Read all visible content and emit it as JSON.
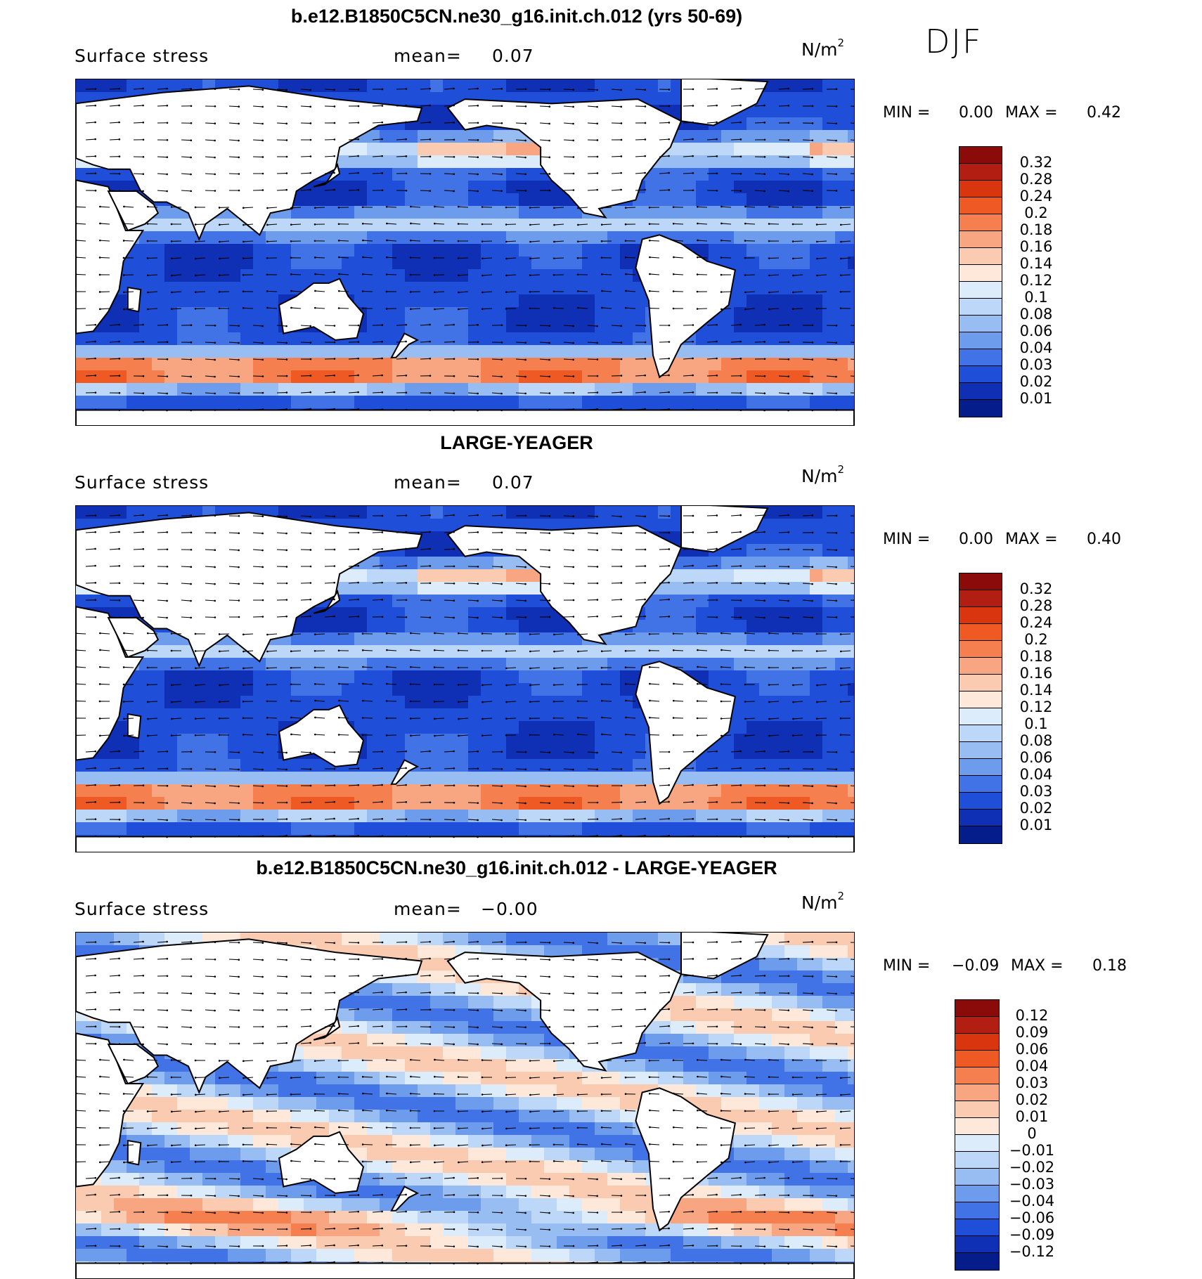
{
  "season": "DJF",
  "panels": [
    {
      "title": "b.e12.B1850C5CN.ne30_g16.init.ch.012 (yrs 50-69)",
      "variable": "Surface stress",
      "mean_label": "mean=",
      "mean_value": "0.07",
      "units": "N/m",
      "units_exp": "2",
      "min_label": "MIN =",
      "min_value": "0.00",
      "max_label": "MAX =",
      "max_value": "0.42",
      "colorbar_ticks": [
        "0.32",
        "0.28",
        "0.24",
        "0.2",
        "0.18",
        "0.16",
        "0.14",
        "0.12",
        "0.1",
        "0.08",
        "0.06",
        "0.04",
        "0.03",
        "0.02",
        "0.01"
      ],
      "colors": [
        "#8b0a0a",
        "#b21e12",
        "#d9350f",
        "#ef5a24",
        "#f57f4f",
        "#f8a581",
        "#fbcbb1",
        "#fde8da",
        "#dcecfa",
        "#bcd7f7",
        "#98bdf2",
        "#6d9cec",
        "#4173e6",
        "#1f4ed9",
        "#0f2fb5",
        "#041d8a"
      ]
    },
    {
      "title": "LARGE-YEAGER",
      "variable": "Surface stress",
      "mean_label": "mean=",
      "mean_value": "0.07",
      "units": "N/m",
      "units_exp": "2",
      "min_label": "MIN =",
      "min_value": "0.00",
      "max_label": "MAX =",
      "max_value": "0.40",
      "colorbar_ticks": [
        "0.32",
        "0.28",
        "0.24",
        "0.2",
        "0.18",
        "0.16",
        "0.14",
        "0.12",
        "0.1",
        "0.08",
        "0.06",
        "0.04",
        "0.03",
        "0.02",
        "0.01"
      ],
      "colors": [
        "#8b0a0a",
        "#b21e12",
        "#d9350f",
        "#ef5a24",
        "#f57f4f",
        "#f8a581",
        "#fbcbb1",
        "#fde8da",
        "#dcecfa",
        "#bcd7f7",
        "#98bdf2",
        "#6d9cec",
        "#4173e6",
        "#1f4ed9",
        "#0f2fb5",
        "#041d8a"
      ]
    },
    {
      "title": "b.e12.B1850C5CN.ne30_g16.init.ch.012 - LARGE-YEAGER",
      "variable": "Surface stress",
      "mean_label": "mean=",
      "mean_value": "−0.00",
      "units": "N/m",
      "units_exp": "2",
      "min_label": "MIN =",
      "min_value": "−0.09",
      "max_label": "MAX =",
      "max_value": "0.18",
      "colorbar_ticks": [
        "0.12",
        "0.09",
        "0.06",
        "0.04",
        "0.03",
        "0.02",
        "0.01",
        "0",
        "−0.01",
        "−0.02",
        "−0.03",
        "−0.04",
        "−0.06",
        "−0.09",
        "−0.12"
      ],
      "colors": [
        "#8b0a0a",
        "#b21e12",
        "#d9350f",
        "#ef5a24",
        "#f57f4f",
        "#f8a581",
        "#fbcbb1",
        "#fde8da",
        "#dcecfa",
        "#bcd7f7",
        "#98bdf2",
        "#6d9cec",
        "#4173e6",
        "#1f4ed9",
        "#0f2fb5",
        "#041d8a"
      ]
    }
  ]
}
